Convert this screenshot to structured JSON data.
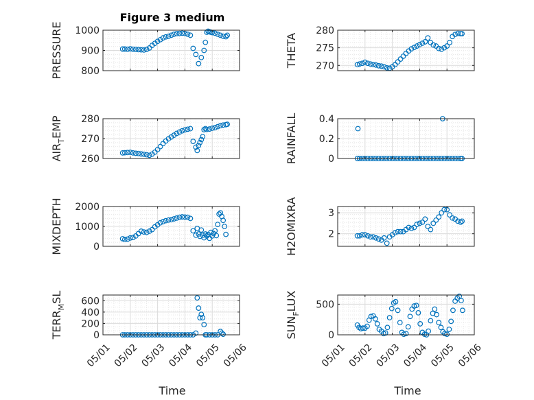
{
  "figure_title": "Figure 3 medium",
  "xlabel": "Time",
  "x_ticks": [
    "05/01",
    "05/02",
    "05/03",
    "05/04",
    "05/05",
    "05/06"
  ],
  "marker_color": "#0072BD",
  "chart_data": [
    {
      "type": "scatter",
      "ylabel": "PRESSURE",
      "ylim": [
        800,
        1000
      ],
      "yticks": [
        800,
        900,
        1000
      ],
      "xlim": [
        0,
        5
      ],
      "grid": "on",
      "x": [
        0.72,
        0.8,
        0.9,
        1.0,
        1.1,
        1.2,
        1.3,
        1.4,
        1.5,
        1.6,
        1.7,
        1.8,
        1.9,
        2.0,
        2.1,
        2.2,
        2.3,
        2.4,
        2.5,
        2.6,
        2.7,
        2.8,
        2.9,
        3.0,
        3.1,
        3.2,
        3.3,
        3.4,
        3.5,
        3.6,
        3.7,
        3.75,
        3.8,
        3.85,
        3.9,
        3.95,
        4.0,
        4.1,
        4.2,
        4.3,
        4.4,
        4.5,
        4.55
      ],
      "y": [
        907,
        907,
        906,
        908,
        906,
        905,
        904,
        903,
        902,
        905,
        912,
        925,
        935,
        945,
        953,
        962,
        967,
        970,
        975,
        980,
        983,
        984,
        985,
        984,
        980,
        975,
        910,
        880,
        835,
        865,
        900,
        940,
        990,
        995,
        992,
        990,
        988,
        985,
        980,
        975,
        970,
        968,
        975
      ]
    },
    {
      "type": "scatter",
      "ylabel": "THETA",
      "ylim": [
        268.5,
        280
      ],
      "yticks": [
        270,
        275,
        280
      ],
      "xlim": [
        0,
        5
      ],
      "grid": "on",
      "x": [
        0.72,
        0.8,
        0.9,
        1.0,
        1.1,
        1.2,
        1.3,
        1.4,
        1.5,
        1.6,
        1.7,
        1.8,
        1.9,
        2.0,
        2.1,
        2.2,
        2.3,
        2.4,
        2.5,
        2.6,
        2.7,
        2.8,
        2.9,
        3.0,
        3.1,
        3.2,
        3.3,
        3.4,
        3.5,
        3.6,
        3.7,
        3.8,
        3.9,
        4.0,
        4.1,
        4.2,
        4.3,
        4.4,
        4.5,
        4.55
      ],
      "y": [
        270.2,
        270.4,
        270.6,
        270.9,
        270.6,
        270.4,
        270.2,
        270.1,
        269.9,
        269.8,
        269.6,
        269.3,
        269.2,
        269.6,
        270.2,
        271.0,
        271.8,
        272.6,
        273.4,
        274.1,
        274.7,
        275.1,
        275.5,
        275.9,
        276.3,
        276.7,
        277.8,
        276.5,
        275.8,
        275.5,
        274.8,
        274.6,
        275.0,
        275.5,
        276.5,
        278.2,
        278.8,
        279.1,
        279.0,
        279.0
      ]
    },
    {
      "type": "scatter",
      "ylabel": "AIR",
      "ylabel_sub": "T",
      "ylabel_rest": "EMP",
      "ylim": [
        260,
        280
      ],
      "yticks": [
        260,
        270,
        280
      ],
      "xlim": [
        0,
        5
      ],
      "grid": "on",
      "x": [
        0.72,
        0.8,
        0.9,
        1.0,
        1.1,
        1.2,
        1.3,
        1.4,
        1.5,
        1.6,
        1.7,
        1.8,
        1.9,
        2.0,
        2.1,
        2.2,
        2.3,
        2.4,
        2.5,
        2.6,
        2.7,
        2.8,
        2.9,
        3.0,
        3.1,
        3.2,
        3.3,
        3.4,
        3.45,
        3.5,
        3.55,
        3.6,
        3.65,
        3.7,
        3.75,
        3.8,
        3.9,
        4.0,
        4.1,
        4.2,
        4.3,
        4.4,
        4.5,
        4.55
      ],
      "y": [
        262.8,
        262.9,
        263.0,
        263.1,
        262.8,
        262.6,
        262.5,
        262.3,
        262.1,
        261.9,
        261.6,
        262.2,
        263.2,
        264.5,
        266.0,
        267.5,
        268.8,
        269.9,
        270.8,
        271.7,
        272.6,
        273.3,
        273.9,
        274.4,
        274.7,
        275.0,
        268.6,
        265.7,
        264.0,
        266.5,
        268.0,
        269.5,
        271.0,
        274.5,
        275.0,
        274.6,
        274.8,
        275.2,
        275.5,
        276.0,
        276.5,
        276.8,
        277.0,
        277.2
      ]
    },
    {
      "type": "scatter",
      "ylabel": "RAINFALL",
      "ylim": [
        0,
        0.4
      ],
      "yticks": [
        0,
        0.2,
        0.4
      ],
      "xlim": [
        0,
        5
      ],
      "grid": "on",
      "x": [
        0.72,
        0.8,
        0.9,
        1.0,
        1.1,
        1.2,
        1.3,
        1.4,
        1.5,
        1.6,
        1.7,
        1.8,
        1.9,
        2.0,
        2.1,
        2.2,
        2.3,
        2.4,
        2.5,
        2.6,
        2.7,
        2.8,
        2.9,
        3.0,
        3.1,
        3.2,
        3.3,
        3.4,
        3.5,
        3.6,
        3.7,
        3.8,
        3.9,
        4.0,
        4.1,
        4.2,
        4.3,
        4.4,
        4.5,
        4.55,
        0.74,
        3.84
      ],
      "y": [
        0,
        0,
        0,
        0,
        0,
        0,
        0,
        0,
        0,
        0,
        0,
        0,
        0,
        0,
        0,
        0,
        0,
        0,
        0,
        0,
        0,
        0,
        0,
        0,
        0,
        0,
        0,
        0,
        0,
        0,
        0,
        0,
        0,
        0,
        0,
        0,
        0,
        0,
        0,
        0,
        0.3,
        0.4
      ]
    },
    {
      "type": "scatter",
      "ylabel": "MIXDEPTH",
      "ylim": [
        0,
        2000
      ],
      "yticks": [
        0,
        1000,
        2000
      ],
      "xlim": [
        0,
        5
      ],
      "grid": "on",
      "x": [
        0.72,
        0.8,
        0.9,
        1.0,
        1.1,
        1.2,
        1.3,
        1.4,
        1.5,
        1.6,
        1.7,
        1.8,
        1.9,
        2.0,
        2.1,
        2.2,
        2.3,
        2.4,
        2.5,
        2.6,
        2.7,
        2.8,
        2.9,
        3.0,
        3.1,
        3.2,
        3.3,
        3.4,
        3.45,
        3.5,
        3.55,
        3.6,
        3.65,
        3.7,
        3.75,
        3.8,
        3.85,
        3.9,
        3.95,
        4.0,
        4.05,
        4.1,
        4.15,
        4.2,
        4.25,
        4.3,
        4.35,
        4.4,
        4.45,
        4.5
      ],
      "y": [
        380,
        340,
        360,
        420,
        440,
        520,
        640,
        760,
        720,
        700,
        760,
        840,
        980,
        1080,
        1180,
        1240,
        1290,
        1320,
        1340,
        1380,
        1420,
        1460,
        1480,
        1470,
        1460,
        1400,
        780,
        560,
        900,
        620,
        500,
        820,
        560,
        430,
        620,
        520,
        600,
        400,
        700,
        520,
        640,
        780,
        540,
        1100,
        1620,
        1680,
        1500,
        1300,
        1000,
        600
      ]
    },
    {
      "type": "scatter",
      "ylabel": "H2OMIXRA",
      "ylim": [
        1.4,
        3.3
      ],
      "yticks": [
        2,
        3
      ],
      "xlim": [
        0,
        5
      ],
      "grid": "on",
      "x": [
        0.72,
        0.8,
        0.9,
        1.0,
        1.1,
        1.2,
        1.3,
        1.4,
        1.5,
        1.6,
        1.7,
        1.8,
        1.9,
        2.0,
        2.1,
        2.2,
        2.3,
        2.4,
        2.5,
        2.6,
        2.7,
        2.8,
        2.9,
        3.0,
        3.1,
        3.2,
        3.3,
        3.4,
        3.5,
        3.6,
        3.7,
        3.8,
        3.9,
        4.0,
        4.1,
        4.2,
        4.3,
        4.4,
        4.5,
        4.55
      ],
      "y": [
        1.9,
        1.9,
        1.95,
        1.95,
        1.9,
        1.85,
        1.85,
        1.8,
        1.75,
        1.7,
        1.8,
        1.55,
        1.85,
        1.95,
        2.05,
        2.1,
        2.1,
        2.1,
        2.2,
        2.3,
        2.25,
        2.3,
        2.45,
        2.5,
        2.55,
        2.7,
        2.35,
        2.2,
        2.5,
        2.65,
        2.8,
        3.0,
        3.15,
        3.15,
        2.9,
        2.75,
        2.7,
        2.6,
        2.55,
        2.6
      ]
    },
    {
      "type": "scatter",
      "ylabel": "TERR",
      "ylabel_sub": "M",
      "ylabel_rest": "SL",
      "ylim": [
        0,
        700
      ],
      "yticks": [
        0,
        200,
        400,
        600
      ],
      "xlim": [
        0,
        5
      ],
      "grid": "on",
      "x": [
        0.72,
        0.8,
        0.9,
        1.0,
        1.1,
        1.2,
        1.3,
        1.4,
        1.5,
        1.6,
        1.7,
        1.8,
        1.9,
        2.0,
        2.1,
        2.2,
        2.3,
        2.4,
        2.5,
        2.6,
        2.7,
        2.8,
        2.9,
        3.0,
        3.1,
        3.2,
        3.3,
        3.4,
        3.45,
        3.5,
        3.55,
        3.6,
        3.65,
        3.7,
        3.75,
        3.8,
        3.9,
        4.0,
        4.1,
        4.2,
        4.3,
        4.35,
        4.4
      ],
      "y": [
        0,
        0,
        0,
        0,
        0,
        0,
        0,
        0,
        0,
        0,
        0,
        0,
        0,
        0,
        0,
        0,
        0,
        0,
        0,
        0,
        0,
        0,
        0,
        0,
        0,
        0,
        0,
        30,
        650,
        470,
        300,
        360,
        300,
        180,
        0,
        0,
        0,
        0,
        0,
        0,
        60,
        30,
        10
      ]
    },
    {
      "type": "scatter",
      "ylabel": "SUN",
      "ylabel_sub": "F",
      "ylabel_rest": "LUX",
      "ylim": [
        0,
        650
      ],
      "yticks": [
        0,
        500
      ],
      "xlim": [
        0,
        5
      ],
      "grid": "on",
      "x": [
        0.72,
        0.78,
        0.85,
        0.92,
        1.0,
        1.08,
        1.15,
        1.22,
        1.3,
        1.38,
        1.45,
        1.52,
        1.6,
        1.68,
        1.75,
        1.82,
        1.9,
        1.98,
        2.05,
        2.12,
        2.2,
        2.28,
        2.35,
        2.42,
        2.5,
        2.58,
        2.65,
        2.72,
        2.8,
        2.88,
        2.95,
        3.02,
        3.1,
        3.18,
        3.25,
        3.32,
        3.4,
        3.48,
        3.55,
        3.62,
        3.7,
        3.78,
        3.85,
        3.92,
        4.0,
        4.08,
        4.15,
        4.22,
        4.3,
        4.38,
        4.45,
        4.52,
        4.57
      ],
      "y": [
        160,
        120,
        100,
        110,
        110,
        140,
        240,
        300,
        310,
        260,
        180,
        90,
        60,
        20,
        30,
        120,
        280,
        430,
        520,
        540,
        400,
        200,
        40,
        10,
        20,
        130,
        300,
        420,
        470,
        480,
        360,
        180,
        40,
        10,
        0,
        60,
        230,
        350,
        420,
        330,
        200,
        120,
        50,
        20,
        10,
        90,
        220,
        400,
        550,
        600,
        630,
        560,
        400
      ]
    }
  ]
}
